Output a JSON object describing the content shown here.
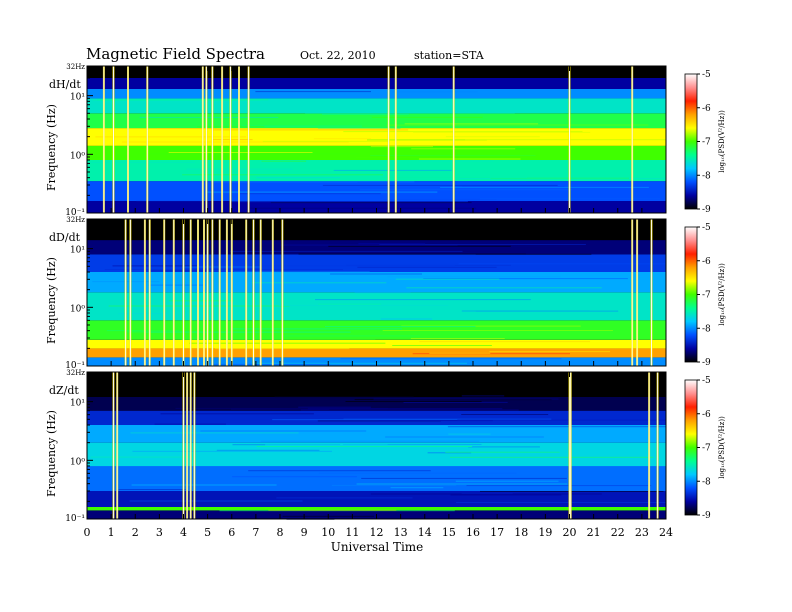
{
  "header": {
    "title": "Magnetic  Field  Spectra",
    "date": "Oct. 22, 2010",
    "station": "station=STA"
  },
  "chart_data": {
    "type": "heatmap",
    "xlabel": "Universal Time",
    "xlim": [
      0,
      24
    ],
    "x_ticks": [
      "0",
      "1",
      "2",
      "3",
      "4",
      "5",
      "6",
      "7",
      "8",
      "9",
      "10",
      "11",
      "12",
      "13",
      "14",
      "15",
      "16",
      "17",
      "18",
      "19",
      "20",
      "21",
      "22",
      "23",
      "24"
    ],
    "colorbar": {
      "label": "log₁₀(PSD(V²/Hz))",
      "range": [
        -9,
        -5
      ],
      "ticks": [
        "-9",
        "-8",
        "-7",
        "-6",
        "-5"
      ],
      "colors": [
        "#000000",
        "#0000a0",
        "#0050ff",
        "#00c8ff",
        "#00ff90",
        "#40ff00",
        "#ffff00",
        "#ffa000",
        "#ff2000",
        "#ff9090",
        "#ffffff"
      ]
    },
    "panels": [
      {
        "name": "dH/dt",
        "ylabel": "Frequency (Hz)",
        "y_ticks": [
          "32Hz",
          "10¹",
          "10⁰",
          "10⁻¹"
        ],
        "bands": [
          {
            "fmin": 0.1,
            "fmax": 0.16,
            "level": -8.6
          },
          {
            "fmin": 0.16,
            "fmax": 0.35,
            "level": -8.2
          },
          {
            "fmin": 0.35,
            "fmax": 0.8,
            "level": -7.5
          },
          {
            "fmin": 0.8,
            "fmax": 1.4,
            "level": -7.0
          },
          {
            "fmin": 1.4,
            "fmax": 2.8,
            "level": -6.6
          },
          {
            "fmin": 2.8,
            "fmax": 5.0,
            "level": -7.2
          },
          {
            "fmin": 5.0,
            "fmax": 9.0,
            "level": -7.6
          },
          {
            "fmin": 9.0,
            "fmax": 13.0,
            "level": -8.0
          },
          {
            "fmin": 13.0,
            "fmax": 20.0,
            "level": -8.6
          },
          {
            "fmin": 20.0,
            "fmax": 32.0,
            "level": -9.0
          }
        ],
        "spikes": [
          0.7,
          1.1,
          1.7,
          2.5,
          4.8,
          4.95,
          5.2,
          5.6,
          5.95,
          6.3,
          6.7,
          12.5,
          12.8,
          15.2,
          20.0,
          22.6
        ]
      },
      {
        "name": "dD/dt",
        "ylabel": "Frequency (Hz)",
        "y_ticks": [
          "32Hz",
          "10¹",
          "10⁰",
          "10⁻¹"
        ],
        "bands": [
          {
            "fmin": 0.1,
            "fmax": 0.14,
            "level": -8.0
          },
          {
            "fmin": 0.14,
            "fmax": 0.2,
            "level": -6.2
          },
          {
            "fmin": 0.2,
            "fmax": 0.28,
            "level": -6.6
          },
          {
            "fmin": 0.28,
            "fmax": 0.6,
            "level": -7.1
          },
          {
            "fmin": 0.6,
            "fmax": 1.8,
            "level": -7.6
          },
          {
            "fmin": 1.8,
            "fmax": 4.0,
            "level": -7.9
          },
          {
            "fmin": 4.0,
            "fmax": 8.0,
            "level": -8.3
          },
          {
            "fmin": 8.0,
            "fmax": 14.0,
            "level": -8.7
          },
          {
            "fmin": 14.0,
            "fmax": 32.0,
            "level": -9.0
          }
        ],
        "spikes": [
          1.6,
          1.8,
          2.4,
          2.6,
          3.2,
          3.6,
          4.0,
          4.3,
          4.6,
          4.85,
          5.0,
          5.2,
          5.5,
          5.8,
          6.0,
          6.6,
          6.9,
          7.2,
          7.7,
          8.1,
          22.6,
          22.8,
          23.4
        ]
      },
      {
        "name": "dZ/dt",
        "ylabel": "Frequency (Hz)",
        "y_ticks": [
          "32Hz",
          "10¹",
          "10⁰",
          "10⁻¹"
        ],
        "bands": [
          {
            "fmin": 0.1,
            "fmax": 0.14,
            "level": -8.7
          },
          {
            "fmin": 0.14,
            "fmax": 0.16,
            "level": -7.0
          },
          {
            "fmin": 0.16,
            "fmax": 0.3,
            "level": -8.5
          },
          {
            "fmin": 0.3,
            "fmax": 0.8,
            "level": -8.1
          },
          {
            "fmin": 0.8,
            "fmax": 2.0,
            "level": -7.7
          },
          {
            "fmin": 2.0,
            "fmax": 4.0,
            "level": -7.9
          },
          {
            "fmin": 4.0,
            "fmax": 7.0,
            "level": -8.4
          },
          {
            "fmin": 7.0,
            "fmax": 12.0,
            "level": -8.8
          },
          {
            "fmin": 12.0,
            "fmax": 32.0,
            "level": -9.0
          }
        ],
        "spikes": [
          1.1,
          1.25,
          4.0,
          4.15,
          4.3,
          4.45,
          20.0,
          20.05,
          23.3,
          23.65
        ]
      }
    ]
  }
}
